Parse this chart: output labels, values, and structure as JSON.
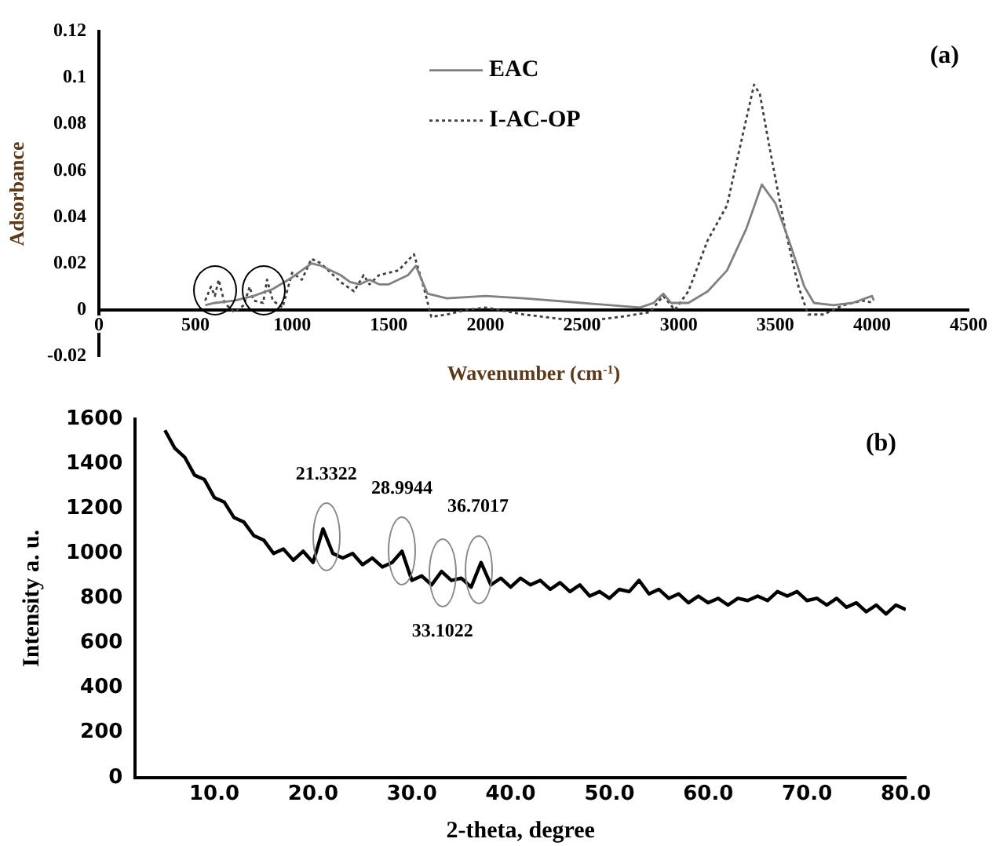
{
  "chart_data": [
    {
      "type": "line",
      "xlabel": "Wavenumber (cm$^{-1}$)",
      "ylabel": "Adsorbance",
      "legend": "top",
      "marker": "none",
      "xlim": [
        0,
        4500
      ],
      "xticks": [
        0,
        500,
        1000,
        1500,
        2000,
        2500,
        3000,
        3500,
        4000,
        4500
      ],
      "ylim": [
        -0.02,
        0.12
      ],
      "yticks": [
        -0.02,
        0,
        0.02,
        0.04,
        0.06,
        0.08,
        0.1,
        0.12
      ],
      "annotations": [
        "(a)"
      ],
      "series": [
        {
          "name": "EAC",
          "color": "#808080",
          "line_style": "solid",
          "x": [
            550,
            600,
            700,
            800,
            900,
            1000,
            1100,
            1150,
            1250,
            1300,
            1350,
            1400,
            1450,
            1500,
            1600,
            1640,
            1700,
            1800,
            2000,
            2200,
            2500,
            2800,
            2870,
            2920,
            2960,
            3050,
            3150,
            3250,
            3350,
            3430,
            3500,
            3570,
            3650,
            3700,
            3800,
            3900,
            4000,
            4010
          ],
          "values": [
            0.002,
            0.003,
            0.004,
            0.006,
            0.009,
            0.014,
            0.02,
            0.019,
            0.015,
            0.012,
            0.011,
            0.013,
            0.011,
            0.011,
            0.015,
            0.019,
            0.007,
            0.005,
            0.006,
            0.005,
            0.003,
            0.001,
            0.003,
            0.007,
            0.003,
            0.003,
            0.008,
            0.017,
            0.035,
            0.054,
            0.046,
            0.03,
            0.01,
            0.003,
            0.002,
            0.003,
            0.006,
            0.004
          ]
        },
        {
          "name": "I-AC-OP",
          "color": "#404040",
          "line_style": "dotted",
          "x": [
            550,
            580,
            600,
            620,
            650,
            700,
            750,
            780,
            800,
            850,
            870,
            900,
            950,
            1000,
            1050,
            1100,
            1150,
            1250,
            1320,
            1370,
            1400,
            1450,
            1550,
            1630,
            1680,
            1720,
            1800,
            1900,
            2000,
            2200,
            2500,
            2700,
            2850,
            2920,
            2980,
            3050,
            3150,
            3250,
            3330,
            3390,
            3420,
            3470,
            3550,
            3620,
            3670,
            3750,
            3850,
            3950,
            4010
          ],
          "values": [
            0.004,
            0.01,
            0.006,
            0.013,
            0.003,
            -0.001,
            0.002,
            0.01,
            0.004,
            0.003,
            0.013,
            0.004,
            0.001,
            0.016,
            0.013,
            0.022,
            0.02,
            0.012,
            0.008,
            0.015,
            0.011,
            0.015,
            0.017,
            0.024,
            0.01,
            -0.003,
            -0.002,
            0,
            0.001,
            -0.002,
            -0.005,
            -0.003,
            -0.001,
            0.006,
            0,
            0.008,
            0.03,
            0.045,
            0.075,
            0.097,
            0.093,
            0.07,
            0.035,
            0.01,
            -0.002,
            -0.002,
            0.002,
            0.004,
            0.003
          ]
        }
      ]
    },
    {
      "type": "line",
      "xlabel": "2-theta, degree",
      "ylabel": "Intensity a. u.",
      "marker": "none",
      "xlim": [
        2,
        80
      ],
      "xticks": [
        {
          "value": 10,
          "label": "10.0"
        },
        {
          "value": 20,
          "label": "20.0"
        },
        {
          "value": 30,
          "label": "30.0"
        },
        {
          "value": 40,
          "label": "40.0"
        },
        {
          "value": 50,
          "label": "50.0"
        },
        {
          "value": 60,
          "label": "60.0"
        },
        {
          "value": 70,
          "label": "70.0"
        },
        {
          "value": 80,
          "label": "80.0"
        }
      ],
      "ylim": [
        0,
        1600
      ],
      "yticks": [
        0,
        200,
        400,
        600,
        800,
        1000,
        1200,
        1400,
        1600
      ],
      "annotations": [
        "(b)",
        {
          "text": "21.3322",
          "x": 21.3322,
          "y": 1073
        },
        {
          "text": "28.9944",
          "x": 28.9944,
          "y": 1010
        },
        {
          "text": "33.1022",
          "x": 33.1022,
          "y": 916
        },
        {
          "text": "36.7017",
          "x": 36.7017,
          "y": 927
        }
      ],
      "series": [
        {
          "color": "#000000",
          "line_style": "solid",
          "x": [
            5,
            6,
            7,
            8,
            9,
            10,
            11,
            12,
            13,
            14,
            15,
            16,
            17,
            18,
            19,
            20,
            21,
            22,
            23,
            24,
            25,
            26,
            27,
            28,
            29,
            30,
            31,
            32,
            33,
            34,
            35,
            36,
            37,
            38,
            39,
            40,
            41,
            42,
            43,
            44,
            45,
            46,
            47,
            48,
            49,
            50,
            51,
            52,
            53,
            54,
            55,
            56,
            57,
            58,
            59,
            60,
            61,
            62,
            63,
            64,
            65,
            66,
            67,
            68,
            69,
            70,
            71,
            72,
            73,
            74,
            75,
            76,
            77,
            78,
            79,
            80
          ],
          "values": [
            1550,
            1470,
            1430,
            1350,
            1330,
            1250,
            1230,
            1160,
            1140,
            1080,
            1060,
            1000,
            1020,
            970,
            1010,
            960,
            1110,
            1000,
            980,
            1000,
            950,
            980,
            940,
            960,
            1010,
            880,
            900,
            860,
            920,
            880,
            890,
            850,
            960,
            860,
            890,
            850,
            890,
            860,
            880,
            840,
            870,
            830,
            860,
            810,
            830,
            800,
            840,
            830,
            880,
            820,
            840,
            800,
            820,
            780,
            810,
            780,
            800,
            770,
            800,
            790,
            810,
            790,
            830,
            810,
            830,
            790,
            800,
            770,
            800,
            760,
            780,
            740,
            770,
            730,
            770,
            750
          ]
        }
      ]
    }
  ]
}
